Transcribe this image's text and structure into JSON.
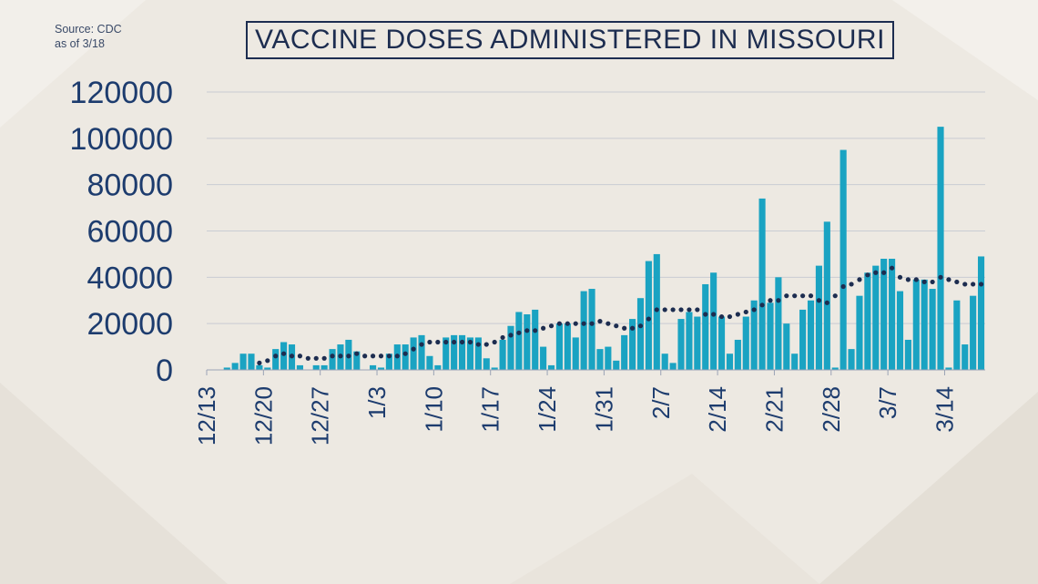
{
  "source_lines": [
    "Source: CDC",
    "as of 3/18"
  ],
  "colors": {
    "bar": "#1aa3c2",
    "dot": "#1d2d50",
    "axis_text": "#1d3c6e",
    "grid": "#c9ccd3",
    "title": "#1d2d50"
  },
  "chart_data": {
    "type": "bar",
    "title": "VACCINE DOSES ADMINISTERED IN MISSOURI",
    "xlabel": "",
    "ylabel": "",
    "ylim": [
      0,
      120000
    ],
    "yticks": [
      0,
      20000,
      40000,
      60000,
      80000,
      100000,
      120000
    ],
    "grid": true,
    "x_tick_labels": [
      "12/13",
      "12/20",
      "12/27",
      "1/3",
      "1/10",
      "1/17",
      "1/24",
      "1/31",
      "2/7",
      "2/14",
      "2/21",
      "2/28",
      "3/7",
      "3/14"
    ],
    "x_tick_positions": [
      0,
      7,
      14,
      21,
      28,
      35,
      42,
      49,
      56,
      63,
      70,
      77,
      84,
      91
    ],
    "series": [
      {
        "kind": "bar",
        "values": [
          0,
          0,
          1000,
          3000,
          7000,
          7000,
          2000,
          1000,
          9000,
          12000,
          11000,
          2000,
          0,
          2000,
          2000,
          9000,
          11000,
          13000,
          8000,
          0,
          2000,
          1000,
          7000,
          11000,
          11000,
          14000,
          15000,
          6000,
          2000,
          14000,
          15000,
          15000,
          14000,
          14000,
          5000,
          1000,
          13000,
          19000,
          25000,
          24000,
          26000,
          10000,
          2000,
          20000,
          20000,
          14000,
          34000,
          35000,
          9000,
          10000,
          4000,
          15000,
          22000,
          31000,
          47000,
          50000,
          7000,
          3000,
          22000,
          25000,
          23000,
          37000,
          42000,
          23000,
          7000,
          13000,
          23000,
          30000,
          74000,
          29000,
          40000,
          20000,
          7000,
          26000,
          30000,
          45000,
          64000,
          1000,
          95000,
          9000,
          32000,
          42000,
          45000,
          48000,
          48000,
          34000,
          13000,
          39000,
          39000,
          35000,
          105000,
          1000,
          30000,
          11000,
          32000,
          49000
        ]
      },
      {
        "kind": "dotted-line",
        "values": [
          null,
          null,
          null,
          null,
          null,
          null,
          3000,
          4000,
          6000,
          7000,
          6000,
          6000,
          5000,
          5000,
          5000,
          6000,
          6000,
          6000,
          7000,
          6000,
          6000,
          6000,
          6000,
          6000,
          7000,
          9000,
          11000,
          12000,
          12000,
          12000,
          12000,
          12000,
          12000,
          11000,
          11000,
          12000,
          14000,
          15000,
          16000,
          17000,
          17000,
          18000,
          19000,
          20000,
          20000,
          20000,
          20000,
          20000,
          21000,
          20000,
          19000,
          18000,
          18000,
          19000,
          22000,
          26000,
          26000,
          26000,
          26000,
          26000,
          26000,
          24000,
          24000,
          23000,
          23000,
          24000,
          25000,
          26000,
          28000,
          30000,
          30000,
          32000,
          32000,
          32000,
          32000,
          30000,
          29000,
          32000,
          36000,
          37000,
          39000,
          41000,
          42000,
          42000,
          44000,
          40000,
          39000,
          39000,
          38000,
          38000,
          40000,
          39000,
          38000,
          37000,
          37000,
          37000
        ]
      }
    ]
  }
}
